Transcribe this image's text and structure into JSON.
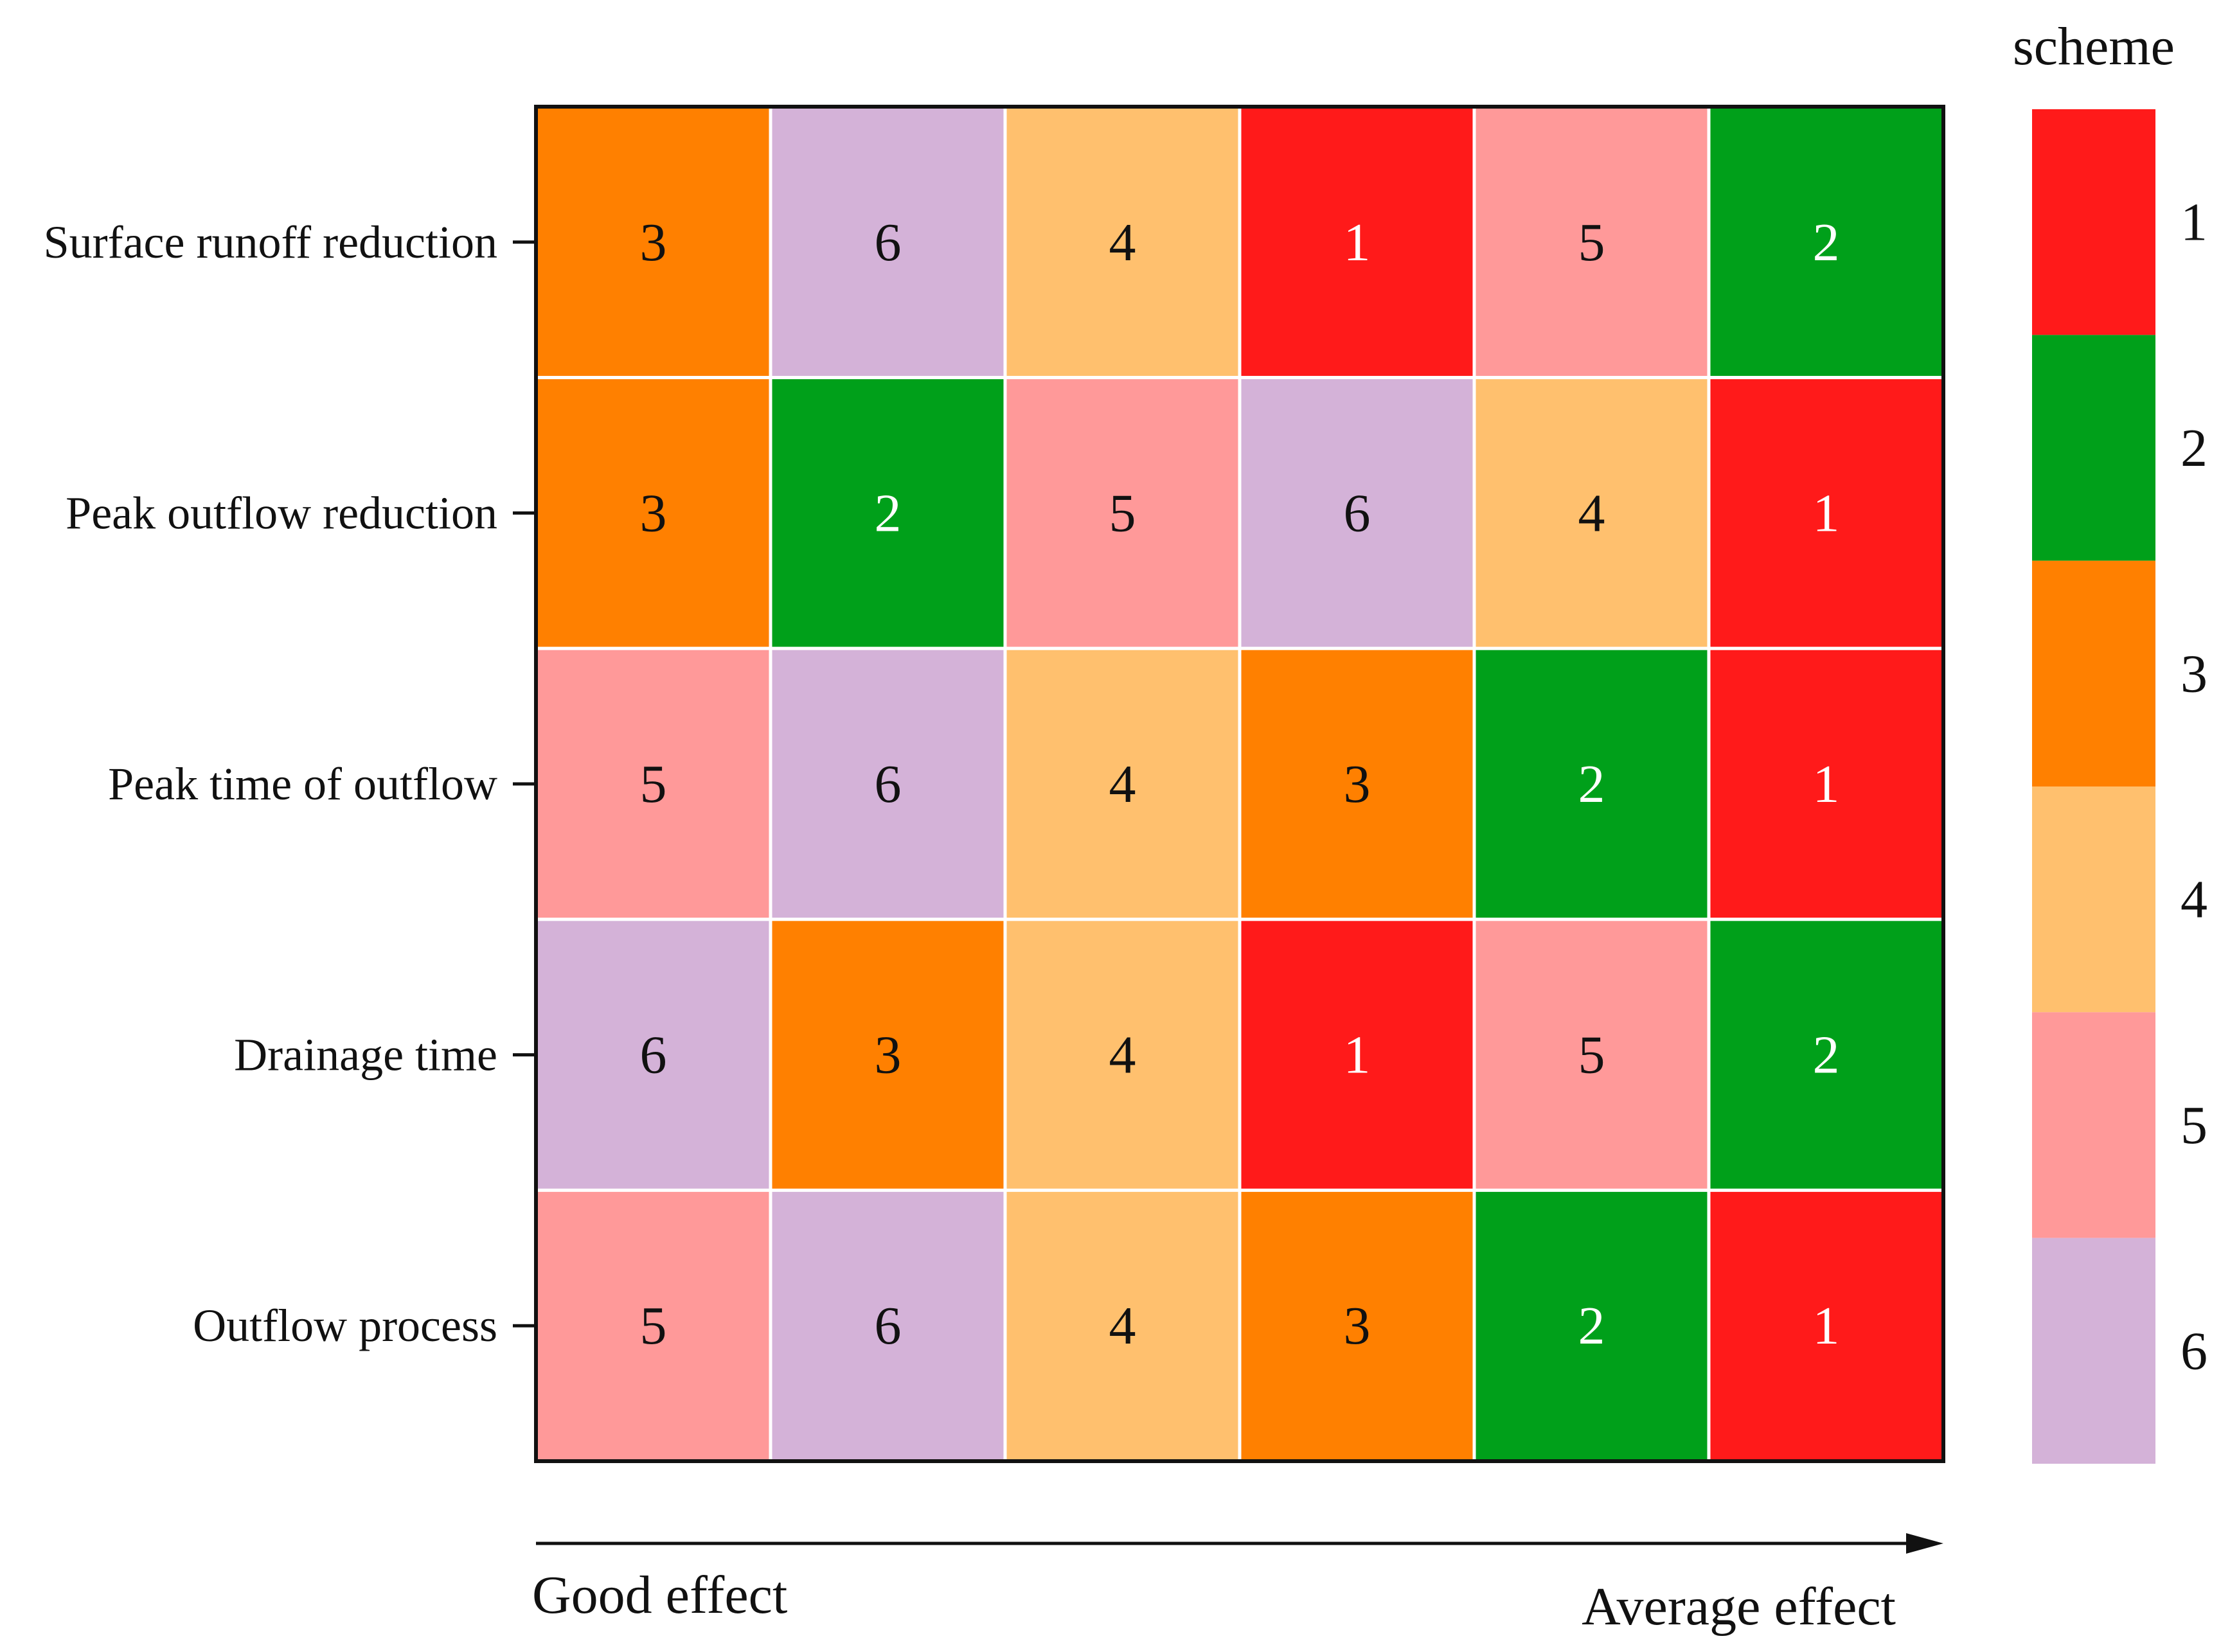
{
  "chart_data": {
    "type": "heatmap",
    "title": "",
    "rows": [
      "Surface runoff reduction",
      "Peak outflow reduction",
      "Peak time of outflow",
      "Drainage time",
      "Outflow process"
    ],
    "columns": 6,
    "values": [
      [
        3,
        6,
        4,
        1,
        5,
        2
      ],
      [
        3,
        2,
        5,
        6,
        4,
        1
      ],
      [
        5,
        6,
        4,
        3,
        2,
        1
      ],
      [
        6,
        3,
        4,
        1,
        5,
        2
      ],
      [
        5,
        6,
        4,
        3,
        2,
        1
      ]
    ],
    "legend": {
      "title": "scheme",
      "placement": "right",
      "entries": [
        {
          "label": "1",
          "value": 1,
          "color": "#ff1a1a"
        },
        {
          "label": "2",
          "value": 2,
          "color": "#00a01a"
        },
        {
          "label": "3",
          "value": 3,
          "color": "#ff8000"
        },
        {
          "label": "4",
          "value": 4,
          "color": "#ffc06e"
        },
        {
          "label": "5",
          "value": 5,
          "color": "#ff9999"
        },
        {
          "label": "6",
          "value": 6,
          "color": "#d4b2d8"
        }
      ]
    },
    "x_arrow": {
      "start_label": "Good effect",
      "end_label": "Average effect"
    },
    "white_text_values": [
      1,
      2
    ],
    "grid": true
  }
}
